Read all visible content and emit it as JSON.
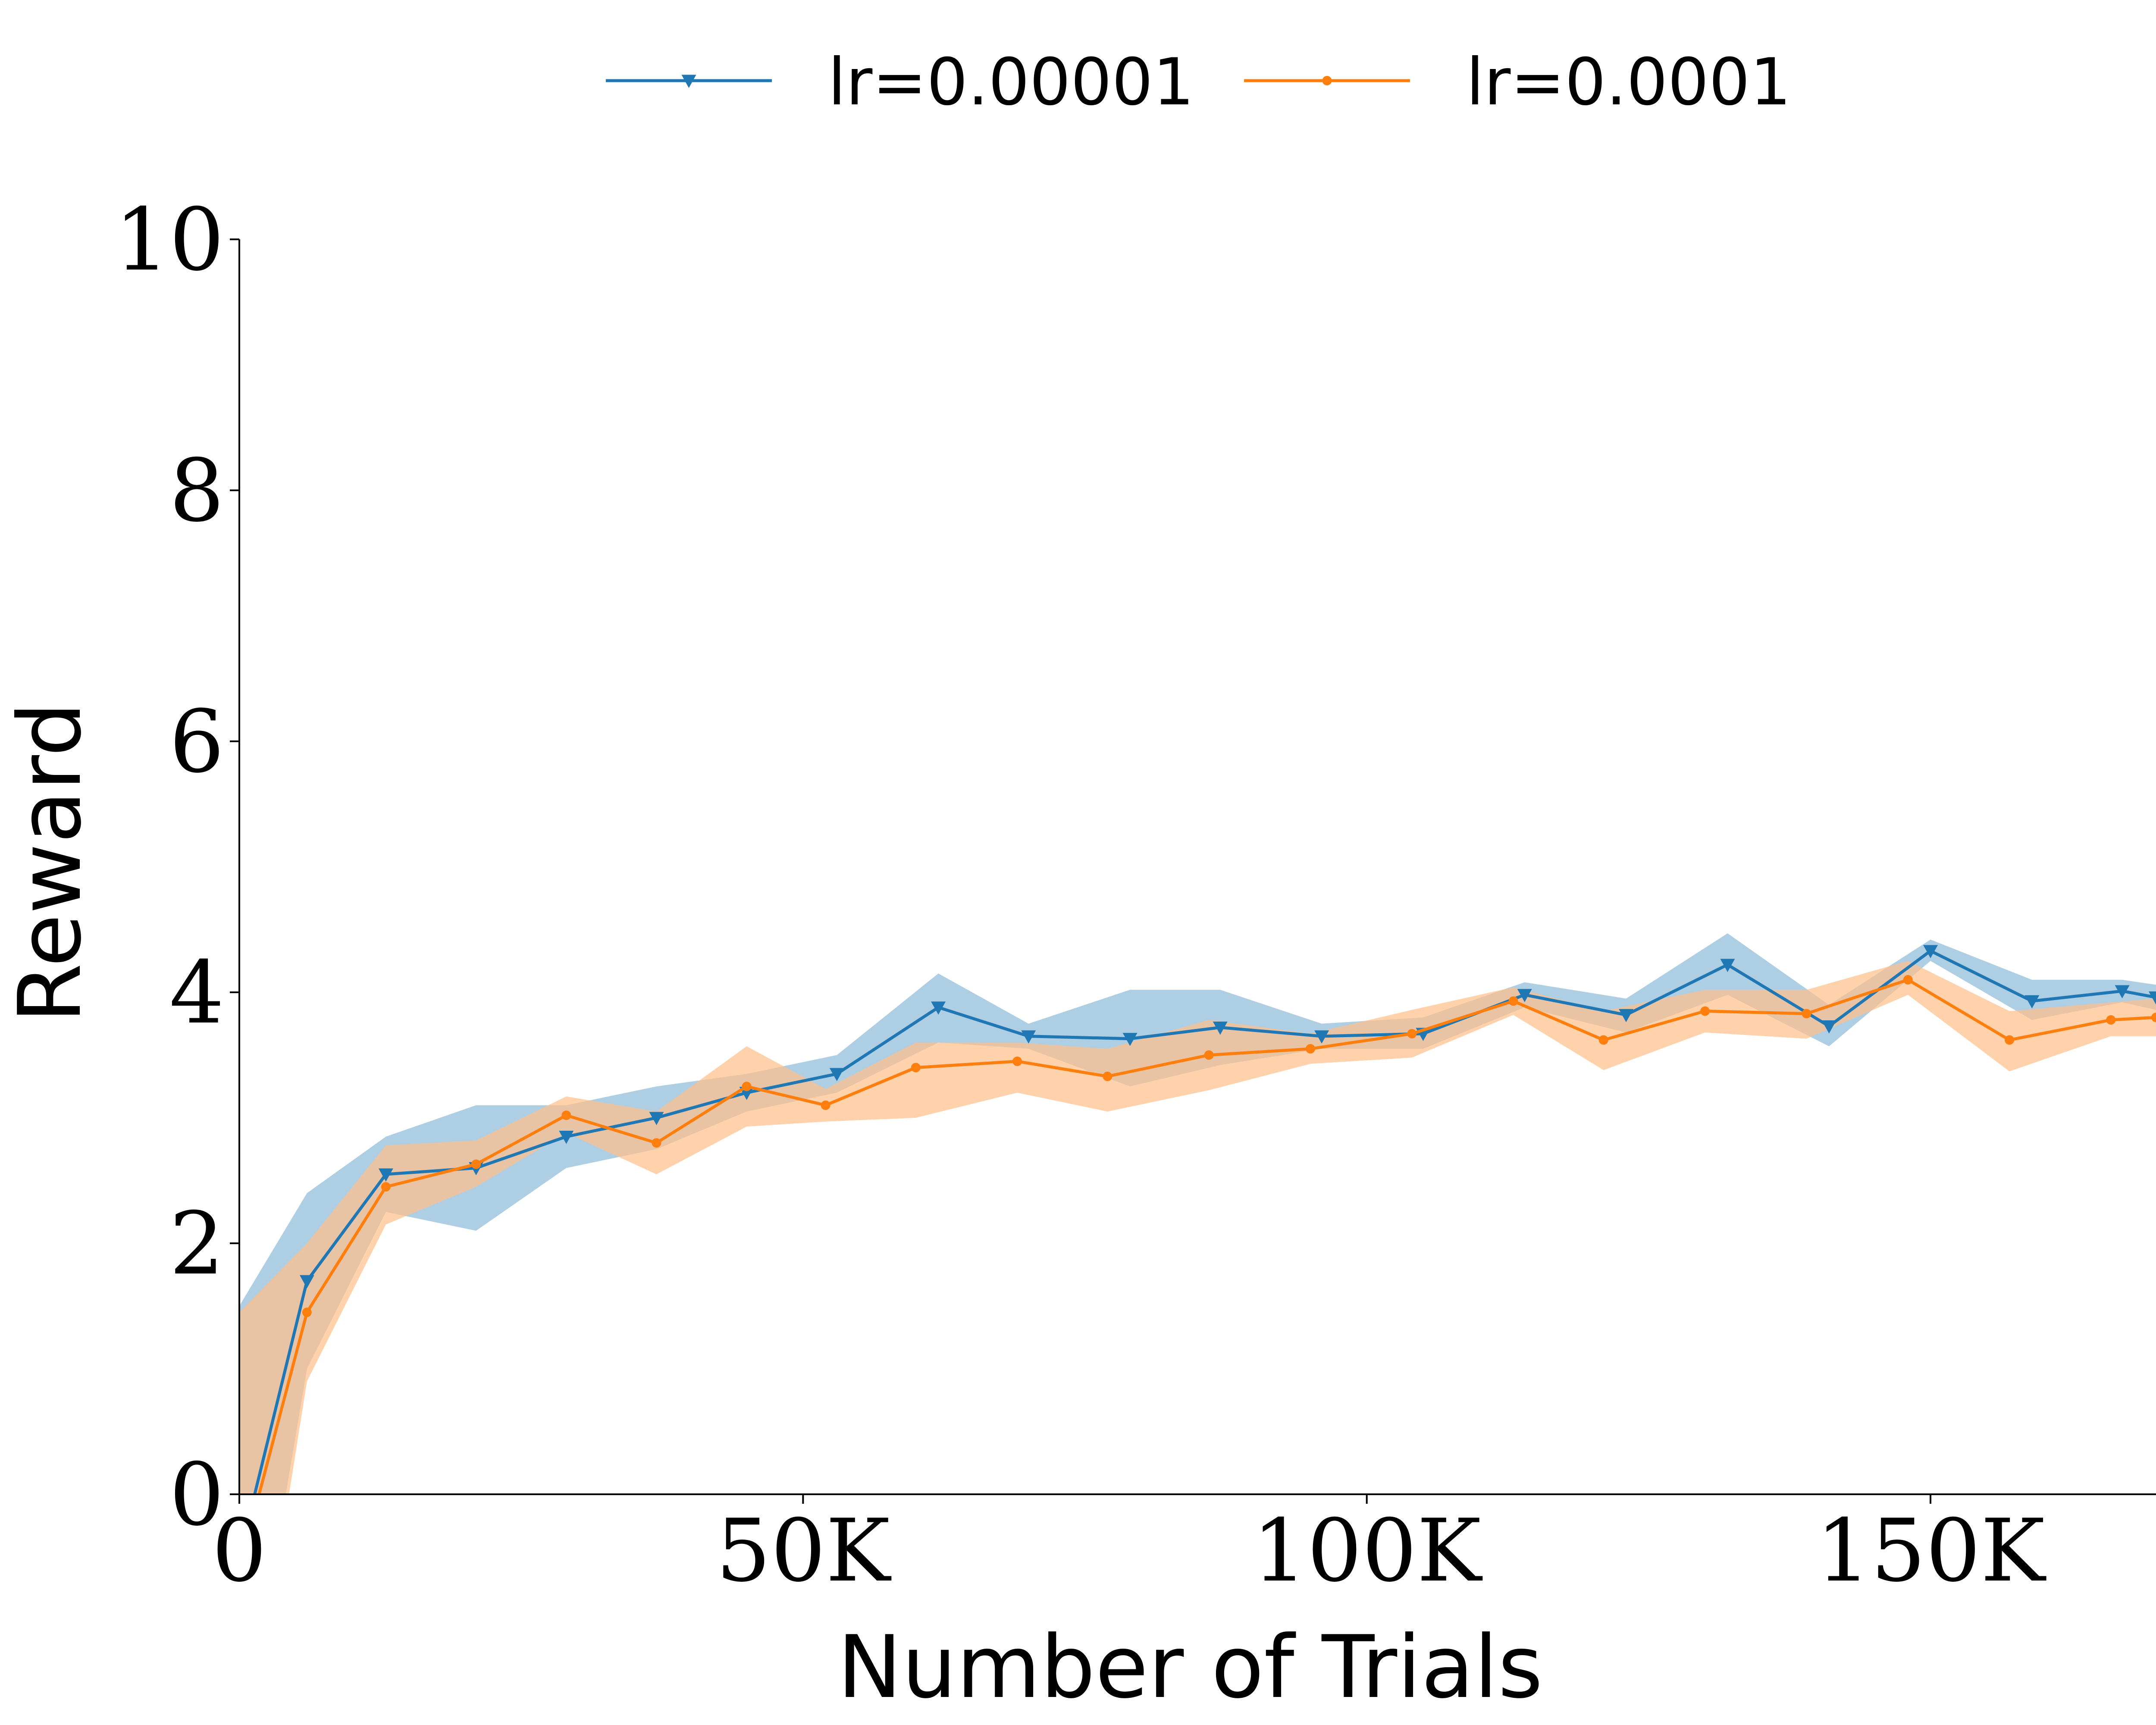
{
  "chart_data": {
    "type": "line",
    "xlabel": "Number of Trials",
    "ylabel": "Reward",
    "xlim": [
      0,
      170000
    ],
    "ylim": [
      0,
      10
    ],
    "x_ticks": [
      {
        "value": 0,
        "label": "0"
      },
      {
        "value": 50000,
        "label": "50K"
      },
      {
        "value": 100000,
        "label": "100K"
      },
      {
        "value": 150000,
        "label": "150K"
      }
    ],
    "y_ticks": [
      {
        "value": 0,
        "label": "0"
      },
      {
        "value": 2,
        "label": "2"
      },
      {
        "value": 4,
        "label": "4"
      },
      {
        "value": 6,
        "label": "6"
      },
      {
        "value": 8,
        "label": "8"
      },
      {
        "value": 10,
        "label": "10"
      }
    ],
    "grid": false,
    "legend_position": "top-center",
    "series": [
      {
        "name": "lr=0.00001",
        "color": "#1f77b4",
        "band_color": "#8fbbd9",
        "marker": "triangle-down",
        "points": [
          {
            "x": 0,
            "y": -0.5,
            "lo": -2.2,
            "hi": 1.5
          },
          {
            "x": 6000,
            "y": 1.7,
            "lo": 1.0,
            "hi": 2.4
          },
          {
            "x": 13000,
            "y": 2.55,
            "lo": 2.25,
            "hi": 2.85
          },
          {
            "x": 21000,
            "y": 2.6,
            "lo": 2.1,
            "hi": 3.1
          },
          {
            "x": 29000,
            "y": 2.85,
            "lo": 2.6,
            "hi": 3.1
          },
          {
            "x": 37000,
            "y": 3.0,
            "lo": 2.75,
            "hi": 3.25
          },
          {
            "x": 45000,
            "y": 3.2,
            "lo": 3.05,
            "hi": 3.35
          },
          {
            "x": 53000,
            "y": 3.35,
            "lo": 3.2,
            "hi": 3.5
          },
          {
            "x": 62000,
            "y": 3.88,
            "lo": 3.6,
            "hi": 4.15
          },
          {
            "x": 70000,
            "y": 3.65,
            "lo": 3.55,
            "hi": 3.75
          },
          {
            "x": 79000,
            "y": 3.63,
            "lo": 3.25,
            "hi": 4.02
          },
          {
            "x": 87000,
            "y": 3.72,
            "lo": 3.42,
            "hi": 4.02
          },
          {
            "x": 96000,
            "y": 3.65,
            "lo": 3.55,
            "hi": 3.75
          },
          {
            "x": 105000,
            "y": 3.67,
            "lo": 3.55,
            "hi": 3.8
          },
          {
            "x": 114000,
            "y": 3.98,
            "lo": 3.88,
            "hi": 4.08
          },
          {
            "x": 123000,
            "y": 3.82,
            "lo": 3.68,
            "hi": 3.95
          },
          {
            "x": 132000,
            "y": 4.22,
            "lo": 3.98,
            "hi": 4.47
          },
          {
            "x": 141000,
            "y": 3.73,
            "lo": 3.57,
            "hi": 3.9
          },
          {
            "x": 150000,
            "y": 4.33,
            "lo": 4.25,
            "hi": 4.42
          },
          {
            "x": 159000,
            "y": 3.93,
            "lo": 3.78,
            "hi": 4.1
          },
          {
            "x": 167000,
            "y": 4.01,
            "lo": 3.92,
            "hi": 4.1
          },
          {
            "x": 170000,
            "y": 3.96,
            "lo": 3.86,
            "hi": 4.06
          }
        ]
      },
      {
        "name": "lr=0.0001",
        "color": "#ff7f0e",
        "band_color": "#ffc08c",
        "marker": "circle",
        "points": [
          {
            "x": 0,
            "y": -0.6,
            "lo": -2.5,
            "hi": 1.45
          },
          {
            "x": 6000,
            "y": 1.45,
            "lo": 0.9,
            "hi": 2.0
          },
          {
            "x": 13000,
            "y": 2.45,
            "lo": 2.15,
            "hi": 2.78
          },
          {
            "x": 21000,
            "y": 2.63,
            "lo": 2.45,
            "hi": 2.82
          },
          {
            "x": 29000,
            "y": 3.02,
            "lo": 2.88,
            "hi": 3.17
          },
          {
            "x": 37000,
            "y": 2.8,
            "lo": 2.55,
            "hi": 3.05
          },
          {
            "x": 45000,
            "y": 3.25,
            "lo": 2.93,
            "hi": 3.57
          },
          {
            "x": 52000,
            "y": 3.1,
            "lo": 2.97,
            "hi": 3.23
          },
          {
            "x": 60000,
            "y": 3.4,
            "lo": 3.0,
            "hi": 3.6
          },
          {
            "x": 69000,
            "y": 3.45,
            "lo": 3.2,
            "hi": 3.6
          },
          {
            "x": 77000,
            "y": 3.33,
            "lo": 3.05,
            "hi": 3.55
          },
          {
            "x": 86000,
            "y": 3.5,
            "lo": 3.22,
            "hi": 3.78
          },
          {
            "x": 95000,
            "y": 3.55,
            "lo": 3.43,
            "hi": 3.67
          },
          {
            "x": 104000,
            "y": 3.67,
            "lo": 3.48,
            "hi": 3.86
          },
          {
            "x": 113000,
            "y": 3.93,
            "lo": 3.82,
            "hi": 4.04
          },
          {
            "x": 121000,
            "y": 3.62,
            "lo": 3.38,
            "hi": 3.85
          },
          {
            "x": 130000,
            "y": 3.85,
            "lo": 3.68,
            "hi": 4.02
          },
          {
            "x": 139000,
            "y": 3.83,
            "lo": 3.63,
            "hi": 4.02
          },
          {
            "x": 148000,
            "y": 4.1,
            "lo": 3.98,
            "hi": 4.25
          },
          {
            "x": 157000,
            "y": 3.62,
            "lo": 3.37,
            "hi": 3.85
          },
          {
            "x": 166000,
            "y": 3.78,
            "lo": 3.65,
            "hi": 3.92
          },
          {
            "x": 170000,
            "y": 3.8,
            "lo": 3.65,
            "hi": 3.95
          }
        ]
      }
    ]
  }
}
